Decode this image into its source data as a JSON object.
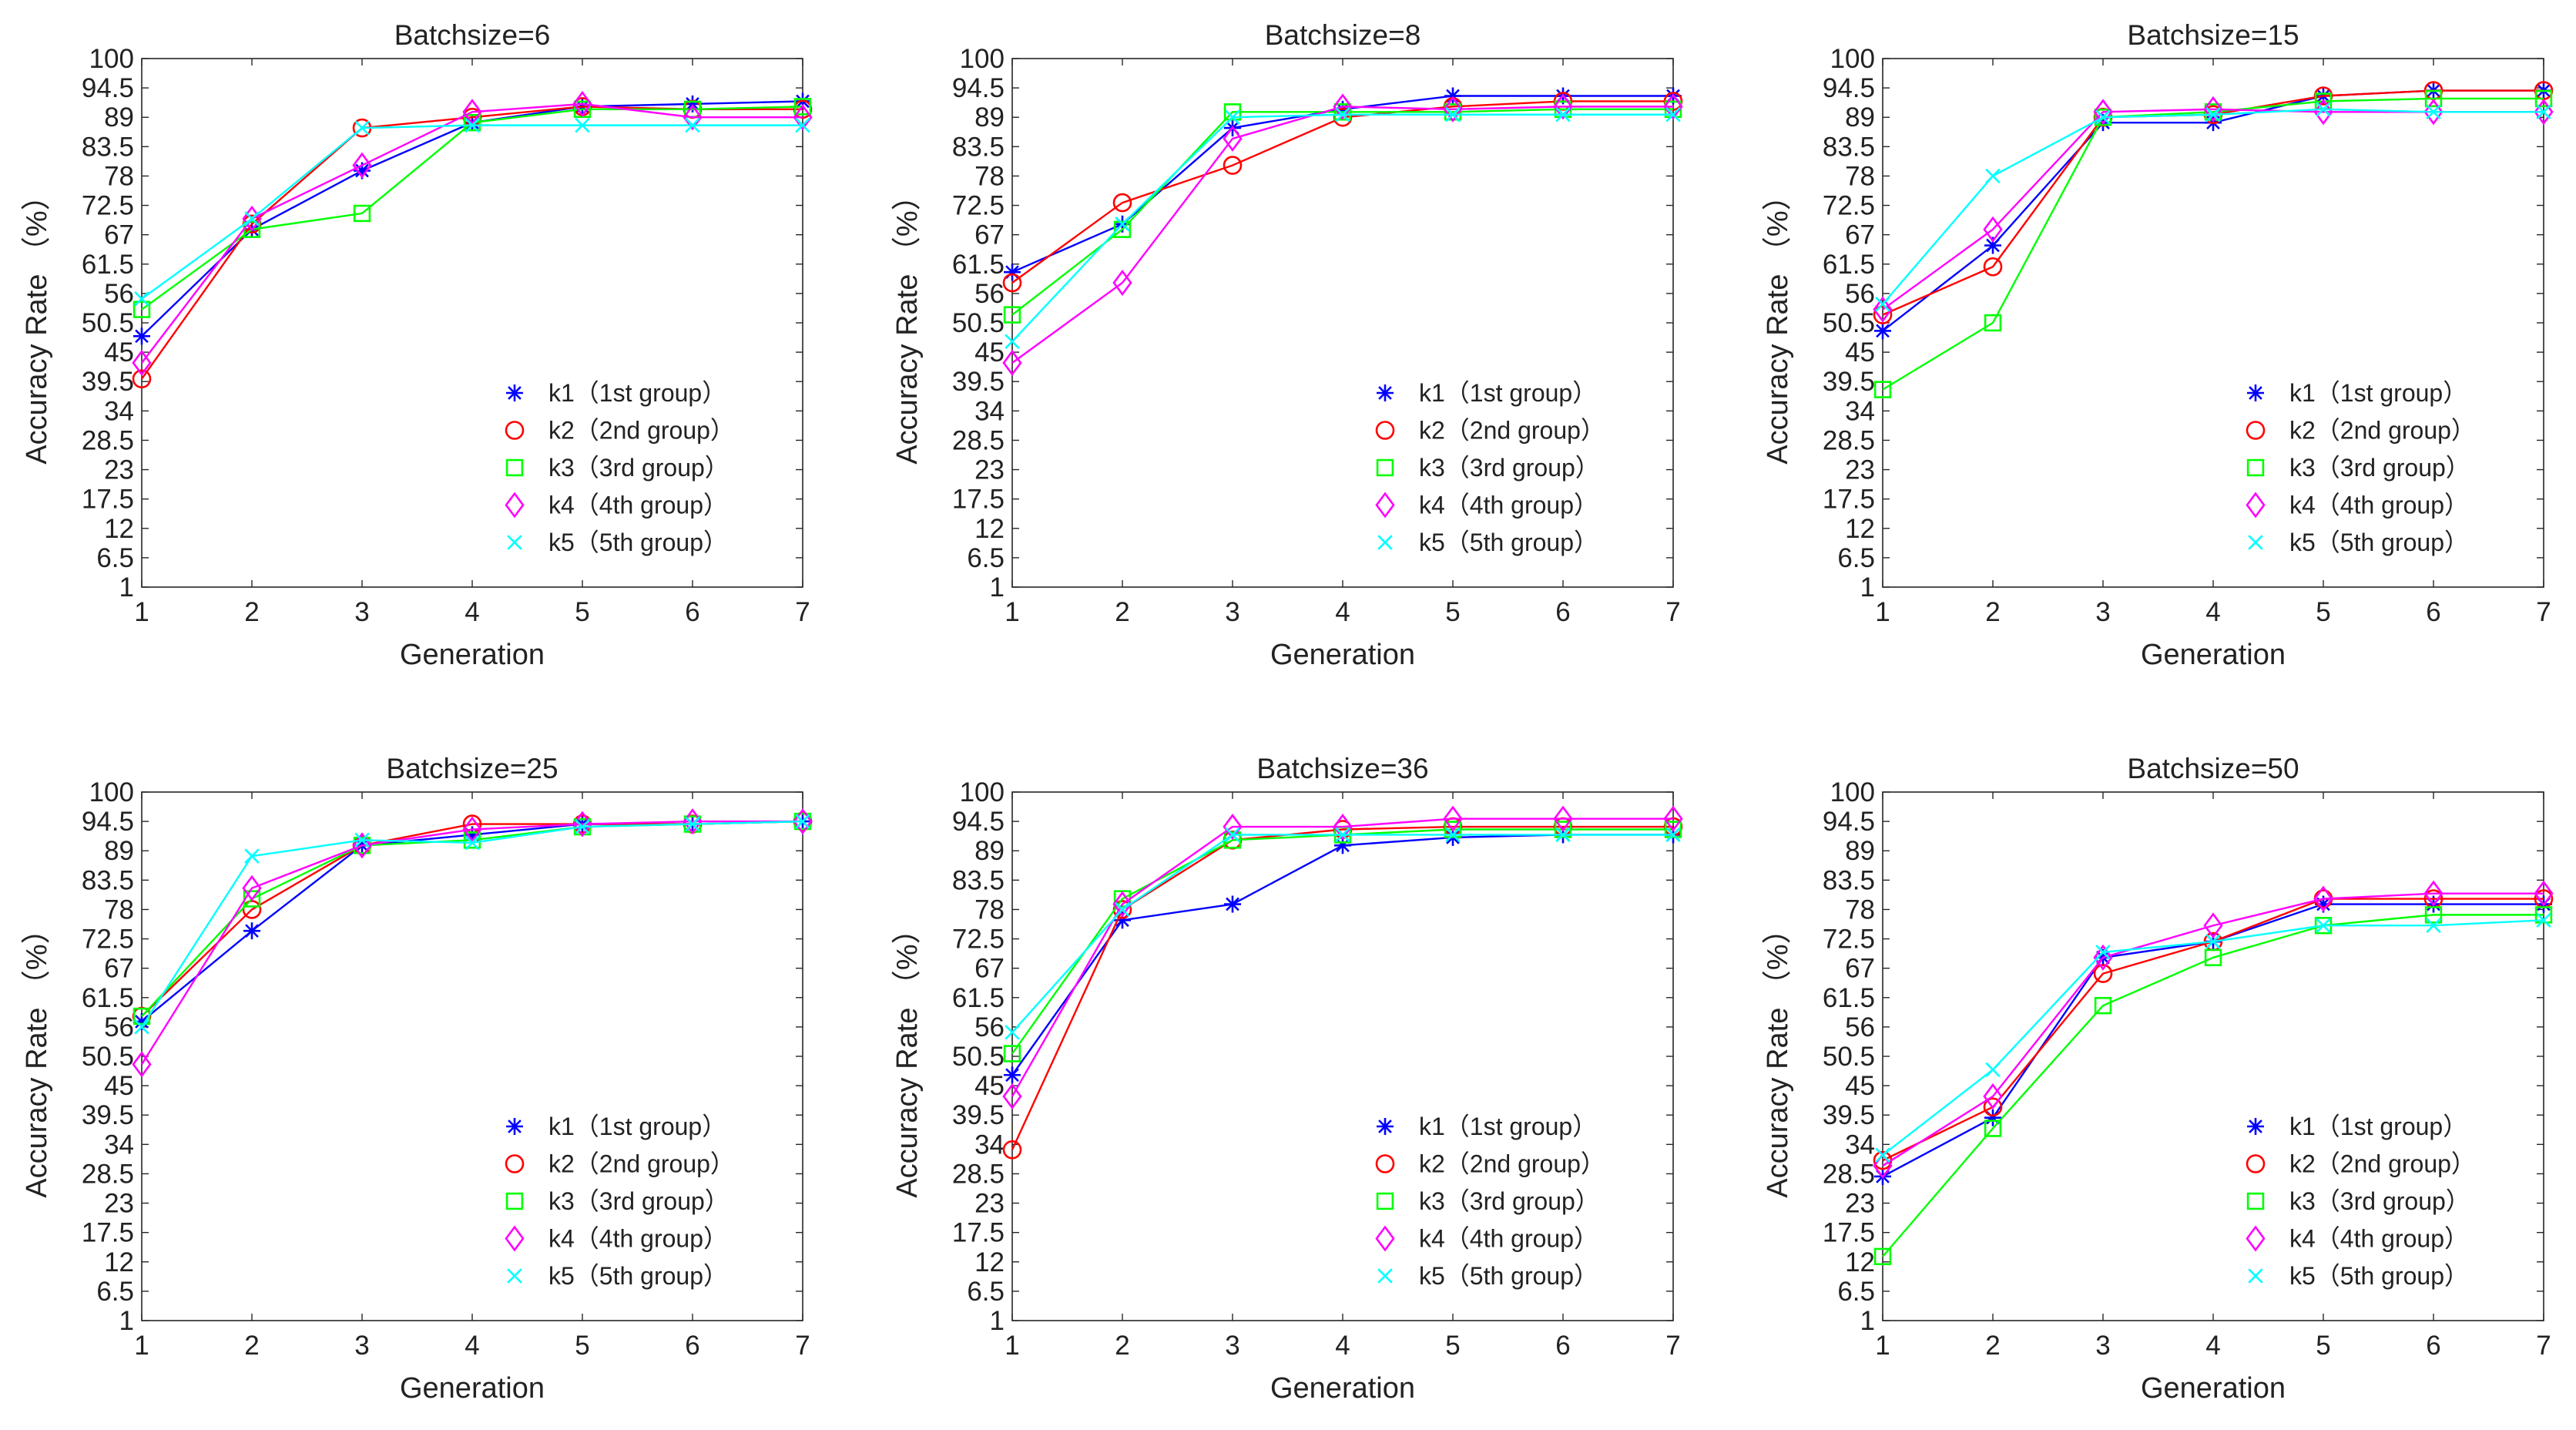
{
  "figure": {
    "xlabel": "Generation",
    "ylabel": "Accuracy Rate （%）"
  },
  "legend": [
    {
      "key": "k1",
      "label": "k1（1st group）",
      "color": "#0000ff",
      "marker": "star"
    },
    {
      "key": "k2",
      "label": "k2（2nd group）",
      "color": "#ff0000",
      "marker": "circle"
    },
    {
      "key": "k3",
      "label": "k3（3rd group）",
      "color": "#00ff00",
      "marker": "square"
    },
    {
      "key": "k4",
      "label": "k4（4th group）",
      "color": "#ff00ff",
      "marker": "diamond"
    },
    {
      "key": "k5",
      "label": "k5（5th group）",
      "color": "#00ffff",
      "marker": "x"
    }
  ],
  "chart_data": [
    {
      "type": "line",
      "title": "Batchsize=6",
      "xlabel": "Generation",
      "ylabel": "Accuracy Rate （%）",
      "x": [
        1,
        2,
        3,
        4,
        5,
        6,
        7
      ],
      "xlim": [
        1,
        7
      ],
      "ylim": [
        1,
        100
      ],
      "yticks": [
        "1",
        "6.5",
        "12",
        "17.5",
        "23",
        "28.5",
        "34",
        "39.5",
        "45",
        "50.5",
        "56",
        "61.5",
        "67",
        "72.5",
        "78",
        "83.5",
        "89",
        "94.5",
        "100"
      ],
      "legend_position": "lower-right",
      "series": [
        {
          "name": "k1（1st group）",
          "values": [
            48,
            68,
            79,
            88,
            91,
            91.5,
            92
          ]
        },
        {
          "name": "k2（2nd group）",
          "values": [
            40,
            69,
            87,
            89,
            91,
            90.5,
            90.5
          ]
        },
        {
          "name": "k3（3rd group）",
          "values": [
            53,
            68,
            71,
            88,
            90.5,
            90.5,
            91
          ]
        },
        {
          "name": "k4（4th group）",
          "values": [
            43,
            70,
            80,
            90,
            91.5,
            89,
            89
          ]
        },
        {
          "name": "k5（5th group）",
          "values": [
            55,
            70,
            87,
            87.5,
            87.5,
            87.5,
            87.5
          ]
        }
      ]
    },
    {
      "type": "line",
      "title": "Batchsize=8",
      "xlabel": "Generation",
      "ylabel": "Accuracy Rate （%）",
      "x": [
        1,
        2,
        3,
        4,
        5,
        6,
        7
      ],
      "xlim": [
        1,
        7
      ],
      "ylim": [
        1,
        100
      ],
      "yticks": [
        "1",
        "6.5",
        "12",
        "17.5",
        "23",
        "28.5",
        "34",
        "39.5",
        "45",
        "50.5",
        "56",
        "61.5",
        "67",
        "72.5",
        "78",
        "83.5",
        "89",
        "94.5",
        "100"
      ],
      "legend_position": "lower-right",
      "series": [
        {
          "name": "k1（1st group）",
          "values": [
            60,
            69,
            87,
            90.5,
            93,
            93,
            93
          ]
        },
        {
          "name": "k2（2nd group）",
          "values": [
            58,
            73,
            80,
            89,
            91,
            92,
            92
          ]
        },
        {
          "name": "k3（3rd group）",
          "values": [
            52,
            68,
            90,
            90,
            90,
            90.5,
            90.5
          ]
        },
        {
          "name": "k4（4th group）",
          "values": [
            43,
            58,
            85,
            91,
            90.5,
            91,
            91
          ]
        },
        {
          "name": "k5（5th group）",
          "values": [
            47,
            69,
            89,
            89.5,
            89.5,
            89.5,
            89.5
          ]
        }
      ]
    },
    {
      "type": "line",
      "title": "Batchsize=15",
      "xlabel": "Generation",
      "ylabel": "Accuracy Rate （%）",
      "x": [
        1,
        2,
        3,
        4,
        5,
        6,
        7
      ],
      "xlim": [
        1,
        7
      ],
      "ylim": [
        1,
        100
      ],
      "yticks": [
        "1",
        "6.5",
        "12",
        "17.5",
        "23",
        "28.5",
        "34",
        "39.5",
        "45",
        "50.5",
        "56",
        "61.5",
        "67",
        "72.5",
        "78",
        "83.5",
        "89",
        "94.5",
        "100"
      ],
      "legend_position": "lower-right",
      "series": [
        {
          "name": "k1（1st group）",
          "values": [
            49,
            65,
            88,
            88,
            93,
            94,
            94
          ]
        },
        {
          "name": "k2（2nd group）",
          "values": [
            52,
            61,
            89,
            89.5,
            93,
            94,
            94
          ]
        },
        {
          "name": "k3（3rd group）",
          "values": [
            38,
            50.5,
            89,
            90,
            92,
            92.5,
            92.5
          ]
        },
        {
          "name": "k4（4th group）",
          "values": [
            53,
            68,
            90,
            90.5,
            90,
            90,
            90
          ]
        },
        {
          "name": "k5（5th group）",
          "values": [
            54,
            78,
            89,
            89.5,
            90.5,
            90,
            90
          ]
        }
      ]
    },
    {
      "type": "line",
      "title": "Batchsize=25",
      "xlabel": "Generation",
      "ylabel": "Accuracy Rate （%）",
      "x": [
        1,
        2,
        3,
        4,
        5,
        6,
        7
      ],
      "xlim": [
        1,
        7
      ],
      "ylim": [
        1,
        100
      ],
      "yticks": [
        "1",
        "6.5",
        "12",
        "17.5",
        "23",
        "28.5",
        "34",
        "39.5",
        "45",
        "50.5",
        "56",
        "61.5",
        "67",
        "72.5",
        "78",
        "83.5",
        "89",
        "94.5",
        "100"
      ],
      "legend_position": "lower-right",
      "series": [
        {
          "name": "k1（1st group）",
          "values": [
            57,
            74,
            90,
            92,
            94,
            94,
            94.5
          ]
        },
        {
          "name": "k2（2nd group）",
          "values": [
            58,
            78,
            90,
            94,
            94,
            94,
            94.5
          ]
        },
        {
          "name": "k3（3rd group）",
          "values": [
            58,
            80,
            90,
            91,
            93.5,
            94,
            94.5
          ]
        },
        {
          "name": "k4（4th group）",
          "values": [
            49,
            82,
            90,
            93,
            94,
            94.5,
            94.5
          ]
        },
        {
          "name": "k5（5th group）",
          "values": [
            56,
            88,
            91,
            90.5,
            93.5,
            94,
            94.5
          ]
        }
      ]
    },
    {
      "type": "line",
      "title": "Batchsize=36",
      "xlabel": "Generation",
      "ylabel": "Accuracy Rate （%）",
      "x": [
        1,
        2,
        3,
        4,
        5,
        6,
        7
      ],
      "xlim": [
        1,
        7
      ],
      "ylim": [
        1,
        100
      ],
      "yticks": [
        "1",
        "6.5",
        "12",
        "17.5",
        "23",
        "28.5",
        "34",
        "39.5",
        "45",
        "50.5",
        "56",
        "61.5",
        "67",
        "72.5",
        "78",
        "83.5",
        "89",
        "94.5",
        "100"
      ],
      "legend_position": "lower-right",
      "series": [
        {
          "name": "k1（1st group）",
          "values": [
            47,
            76,
            79,
            90,
            91.5,
            92,
            92
          ]
        },
        {
          "name": "k2（2nd group）",
          "values": [
            33,
            78,
            91,
            93,
            93.5,
            93.5,
            93.5
          ]
        },
        {
          "name": "k3（3rd group）",
          "values": [
            51,
            80,
            91,
            92,
            93,
            93,
            93
          ]
        },
        {
          "name": "k4（4th group）",
          "values": [
            43,
            79,
            93.5,
            93.5,
            95,
            95,
            95
          ]
        },
        {
          "name": "k5（5th group）",
          "values": [
            55,
            78,
            92,
            92,
            92,
            92,
            92
          ]
        }
      ]
    },
    {
      "type": "line",
      "title": "Batchsize=50",
      "xlabel": "Generation",
      "ylabel": "Accuracy Rate （%）",
      "x": [
        1,
        2,
        3,
        4,
        5,
        6,
        7
      ],
      "xlim": [
        1,
        7
      ],
      "ylim": [
        1,
        100
      ],
      "yticks": [
        "1",
        "6.5",
        "12",
        "17.5",
        "23",
        "28.5",
        "34",
        "39.5",
        "45",
        "50.5",
        "56",
        "61.5",
        "67",
        "72.5",
        "78",
        "83.5",
        "89",
        "94.5",
        "100"
      ],
      "legend_position": "lower-right",
      "series": [
        {
          "name": "k1（1st group）",
          "values": [
            28,
            39,
            69,
            72,
            79,
            79,
            79
          ]
        },
        {
          "name": "k2（2nd group）",
          "values": [
            31,
            41,
            66,
            72,
            80,
            80,
            80
          ]
        },
        {
          "name": "k3（3rd group）",
          "values": [
            13,
            37,
            60,
            69,
            75,
            77,
            77
          ]
        },
        {
          "name": "k4（4th group）",
          "values": [
            30,
            43,
            69,
            75,
            80,
            81,
            81
          ]
        },
        {
          "name": "k5（5th group）",
          "values": [
            32,
            48,
            70,
            72,
            75,
            75,
            76
          ]
        }
      ]
    }
  ]
}
